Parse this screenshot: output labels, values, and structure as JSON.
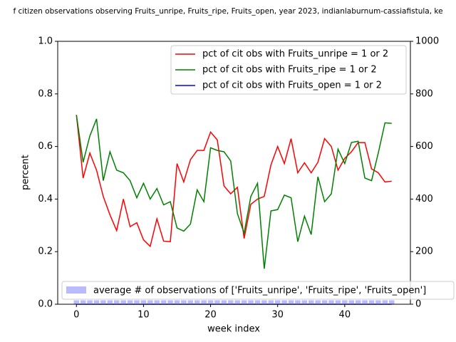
{
  "chart_data": {
    "type": "line",
    "title": "f citizen observations observing Fruits_unripe, Fruits_ripe, Fruits_open, year 2023, indianlaburnum-cassiafistula, ke",
    "x_label": "week index",
    "y_label": "percent",
    "x": [
      0,
      1,
      2,
      3,
      4,
      5,
      6,
      7,
      8,
      9,
      10,
      11,
      12,
      13,
      14,
      15,
      16,
      17,
      18,
      19,
      20,
      21,
      22,
      23,
      24,
      25,
      26,
      27,
      28,
      29,
      30,
      31,
      32,
      33,
      34,
      35,
      36,
      37,
      38,
      39,
      40,
      41,
      42,
      43,
      44,
      45,
      46,
      47
    ],
    "xlim": [
      -2.79,
      49.79
    ],
    "xticks": [
      0,
      10,
      20,
      30,
      40
    ],
    "ylim": [
      0,
      1
    ],
    "yticks": [
      {
        "value": 0,
        "label": "0.0"
      },
      0.2,
      0.4,
      0.6,
      0.8,
      {
        "value": 1,
        "label": "1.0"
      }
    ],
    "y2lim": [
      0,
      1000
    ],
    "y2ticks": [
      0,
      200,
      400,
      600,
      800,
      1000
    ],
    "series": [
      {
        "name": "pct of cit obs with Fruits_unripe = 1 or 2",
        "color": "#ff0000",
        "values": [
          0.72,
          0.48,
          0.575,
          0.51,
          0.41,
          0.34,
          0.28,
          0.4,
          0.295,
          0.31,
          0.245,
          0.22,
          0.325,
          0.24,
          0.238,
          0.535,
          0.465,
          0.55,
          0.585,
          0.585,
          0.655,
          0.625,
          0.45,
          0.42,
          0.445,
          0.25,
          0.38,
          0.4,
          0.41,
          0.53,
          0.6,
          0.535,
          0.63,
          0.5,
          0.538,
          0.5,
          0.54,
          0.63,
          0.6,
          0.51,
          0.555,
          0.58,
          0.615,
          0.615,
          0.515,
          0.5,
          0.465,
          0.468
        ]
      },
      {
        "name": "pct of cit obs with Fruits_ripe = 1 or 2",
        "color": "#008000",
        "values": [
          0.72,
          0.54,
          0.64,
          0.705,
          0.47,
          0.58,
          0.51,
          0.5,
          0.47,
          0.405,
          0.46,
          0.4,
          0.44,
          0.378,
          0.39,
          0.29,
          0.278,
          0.305,
          0.435,
          0.39,
          0.595,
          0.585,
          0.58,
          0.545,
          0.345,
          0.27,
          0.41,
          0.46,
          0.135,
          0.355,
          0.36,
          0.415,
          0.405,
          0.238,
          0.335,
          0.265,
          0.485,
          0.39,
          0.42,
          0.59,
          0.535,
          0.615,
          0.62,
          0.48,
          0.47,
          0.575,
          0.69,
          0.688
        ]
      },
      {
        "name": "pct of cit obs with Fruits_open = 1 or 2",
        "color": "#0000ff",
        "values": [
          0,
          0,
          0,
          0,
          0,
          0,
          0,
          0,
          0,
          0,
          0,
          0,
          0,
          0,
          0,
          0,
          0,
          0,
          0,
          0,
          0,
          0,
          0,
          0,
          0,
          0,
          0,
          0,
          0,
          0,
          0,
          0,
          0,
          0,
          0,
          0,
          0,
          0,
          0,
          0,
          0,
          0,
          0,
          0,
          0,
          0,
          0,
          0
        ]
      },
      {
        "name": "average # of observations of ['Fruits_unripe', 'Fruits_ripe', 'Fruits_open']",
        "color": "#babaff",
        "type": "bar",
        "axis": "y2",
        "values": [
          15,
          15,
          15,
          15,
          15,
          15,
          15,
          15,
          15,
          15,
          15,
          15,
          15,
          15,
          15,
          15,
          15,
          15,
          15,
          15,
          15,
          15,
          15,
          15,
          15,
          15,
          15,
          15,
          15,
          15,
          15,
          15,
          15,
          15,
          15,
          15,
          15,
          15,
          15,
          15,
          15,
          15,
          15,
          15,
          15,
          15,
          15,
          15
        ]
      }
    ]
  }
}
